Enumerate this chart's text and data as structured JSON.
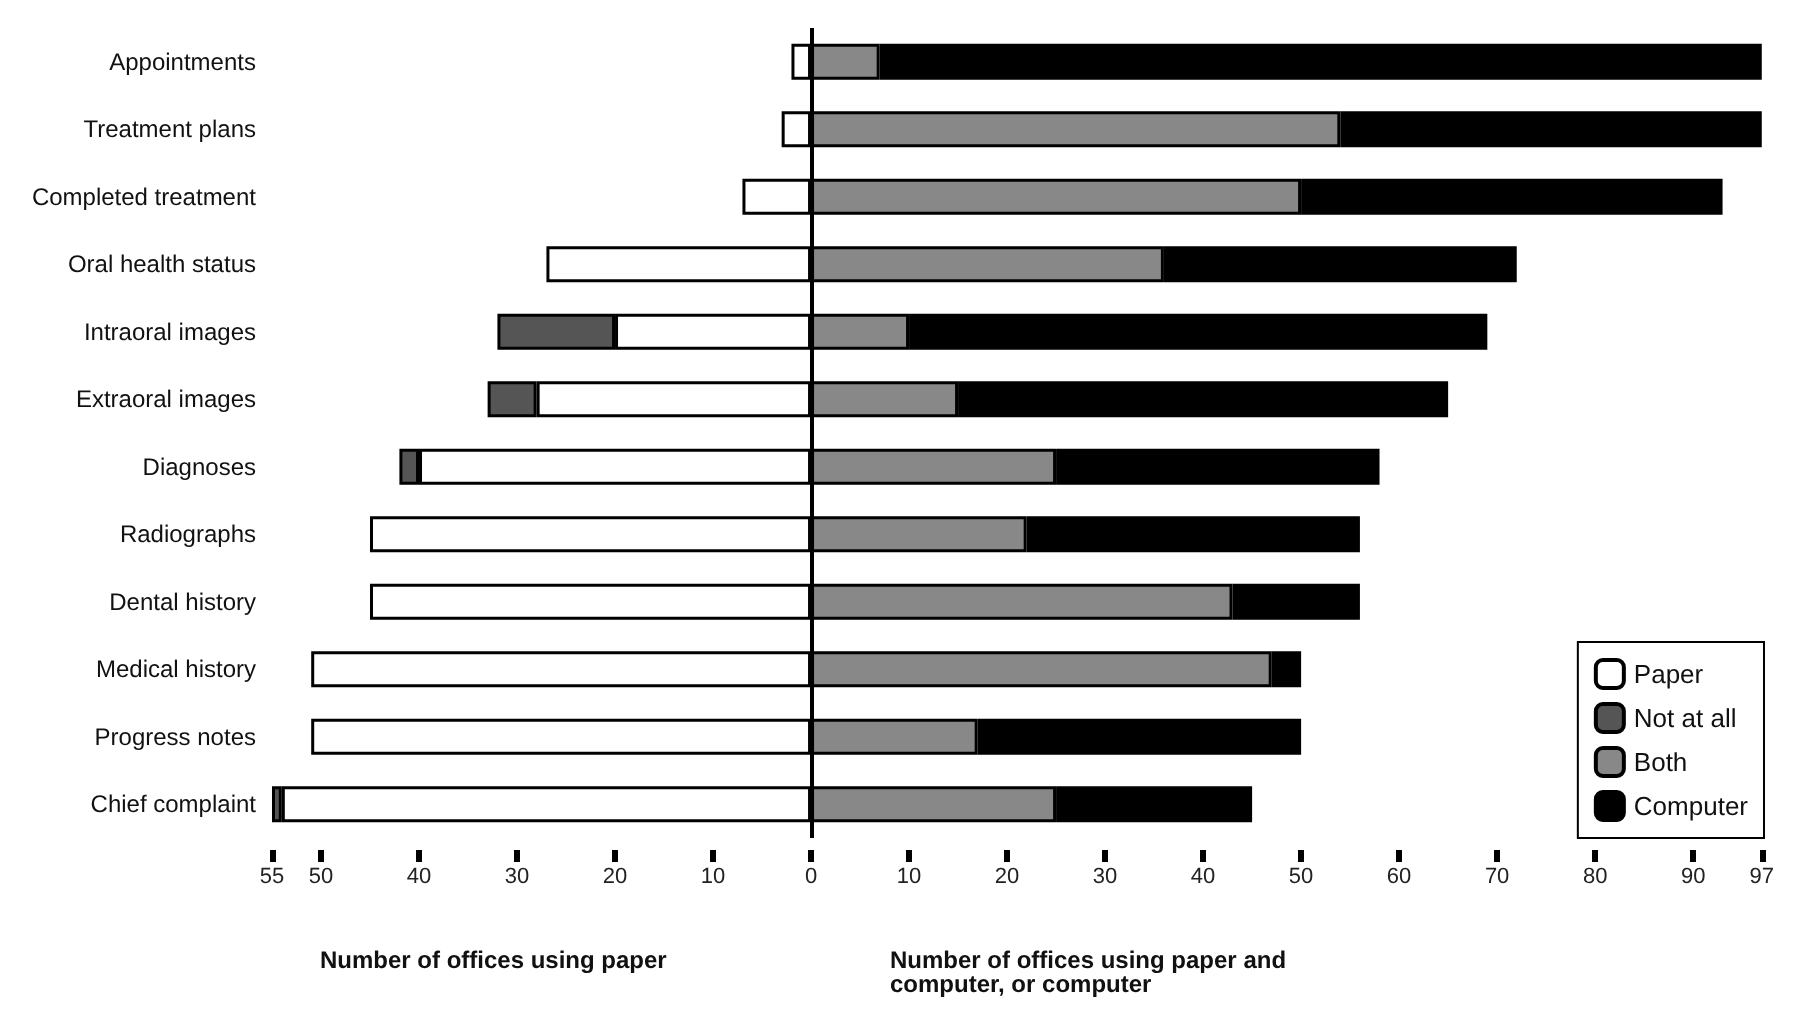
{
  "chart_data": {
    "type": "bar",
    "orientation": "horizontal",
    "stacked": true,
    "categories": [
      "Appointments",
      "Treatment plans",
      "Completed treatment",
      "Oral health status",
      "Intraoral images",
      "Extraoral images",
      "Diagnoses",
      "Radiographs",
      "Dental history",
      "Medical history",
      "Progress notes",
      "Chief complaint"
    ],
    "series": [
      {
        "name": "Paper",
        "color": "#ffffff",
        "values": [
          -2,
          -3,
          -7,
          -27,
          -20,
          -28,
          -40,
          -45,
          -45,
          -51,
          -51,
          -54
        ]
      },
      {
        "name": "Not at all",
        "color": "#555555",
        "values": [
          null,
          null,
          null,
          null,
          -12,
          -5,
          -2,
          null,
          null,
          null,
          null,
          -1
        ]
      },
      {
        "name": "Both",
        "color": "#888888",
        "values": [
          7,
          54,
          50,
          36,
          10,
          15,
          25,
          22,
          43,
          47,
          17,
          25
        ]
      },
      {
        "name": "Computer",
        "color": "#000000",
        "values": [
          90,
          43,
          43,
          36,
          59,
          50,
          33,
          34,
          13,
          3,
          33,
          20
        ]
      }
    ],
    "xlim": [
      -55,
      97
    ],
    "xticks": [
      {
        "value": -55,
        "label": "55"
      },
      {
        "value": -50,
        "label": "50"
      },
      {
        "value": -40,
        "label": "40"
      },
      {
        "value": -30,
        "label": "30"
      },
      {
        "value": -20,
        "label": "20"
      },
      {
        "value": -10,
        "label": "10"
      },
      0,
      10,
      20,
      30,
      40,
      50,
      60,
      70,
      80,
      90,
      97
    ],
    "xlabel": "Number of offices using paper and computer, or computer",
    "annotations": [
      "Number of offices using paper"
    ],
    "ref_lines": [
      {
        "axis": "x",
        "value": 0,
        "color": "#000000"
      }
    ],
    "legend": "bottom right",
    "grid": false
  }
}
